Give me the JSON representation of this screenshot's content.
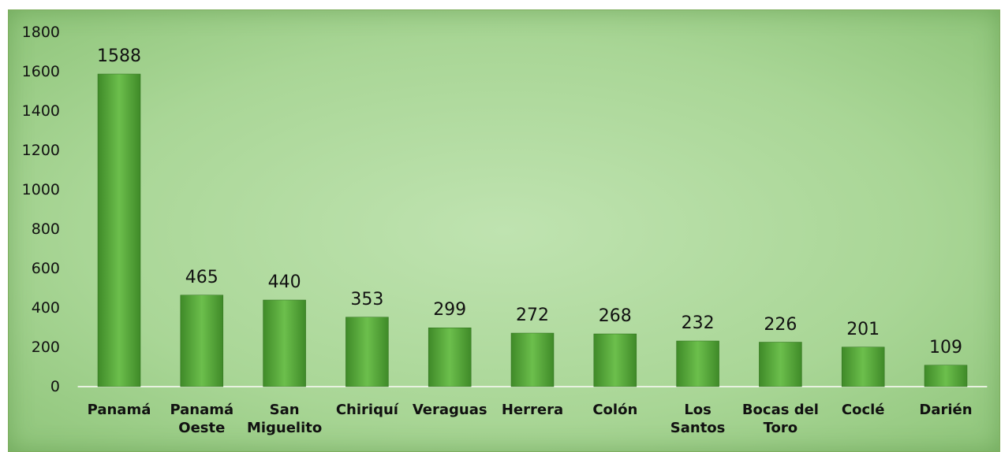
{
  "chart_data": {
    "type": "bar",
    "categories": [
      "Panamá",
      "Panamá Oeste",
      "San Miguelito",
      "Chiriquí",
      "Veraguas",
      "Herrera",
      "Colón",
      "Los Santos",
      "Bocas del Toro",
      "Coclé",
      "Darién"
    ],
    "values": [
      1588,
      465,
      440,
      353,
      299,
      272,
      268,
      232,
      226,
      201,
      109
    ],
    "color": "#5aaa3c",
    "ylim": [
      0,
      1800
    ],
    "yticks": [
      0,
      200,
      400,
      600,
      800,
      1000,
      1200,
      1400,
      1600,
      1800
    ],
    "grid": false
  }
}
